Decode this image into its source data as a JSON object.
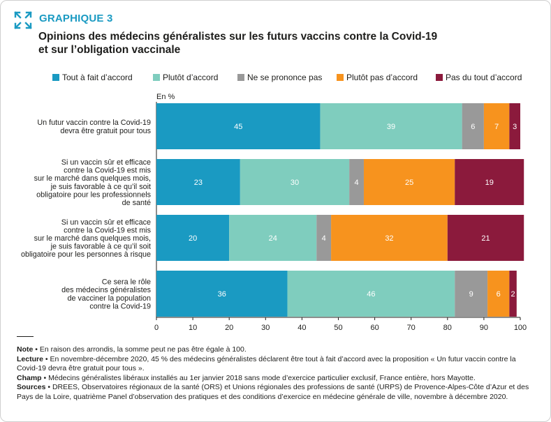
{
  "figure": {
    "label": "GRAPHIQUE 3",
    "title_lines": [
      "Opinions des médecins généralistes sur les futurs vaccins contre la Covid-19",
      "et sur l’obligation vaccinale"
    ]
  },
  "legend": [
    {
      "label": "Tout à fait d’accord",
      "color": "#1a9ac2"
    },
    {
      "label": "Plutôt d’accord",
      "color": "#7fcdbe"
    },
    {
      "label": "Ne se prononce pas",
      "color": "#999999"
    },
    {
      "label": "Plutôt pas d’accord",
      "color": "#f7931e"
    },
    {
      "label": "Pas du tout d’accord",
      "color": "#8b1a3c"
    }
  ],
  "chart_data": {
    "type": "bar",
    "orientation": "horizontal",
    "stacked": true,
    "unit_label": "En %",
    "xlim": [
      0,
      100
    ],
    "x_ticks": [
      "0",
      "10",
      "20",
      "30",
      "40",
      "50",
      "60",
      "70",
      "80",
      "90",
      "100"
    ],
    "categories": [
      [
        "Un futur vaccin contre la Covid-19",
        "devra être gratuit pour tous"
      ],
      [
        "Si un vaccin sûr et efficace",
        "contre la Covid-19 est mis",
        "sur le marché dans quelques mois,",
        "je suis favorable à ce qu’il soit",
        "obligatoire pour les professionnels",
        "de santé"
      ],
      [
        "Si un vaccin sûr et efficace",
        "contre la Covid-19 est mis",
        "sur le marché dans quelques mois,",
        "je suis favorable à ce qu’il soit",
        "obligatoire pour les personnes à risque"
      ],
      [
        "Ce sera le rôle",
        "des médecins généralistes",
        "de vacciner la population",
        "contre la Covid-19"
      ]
    ],
    "series": [
      {
        "name": "Tout à fait d’accord",
        "values": [
          45,
          23,
          20,
          36
        ]
      },
      {
        "name": "Plutôt d’accord",
        "values": [
          39,
          30,
          24,
          46
        ]
      },
      {
        "name": "Ne se prononce pas",
        "values": [
          6,
          4,
          4,
          9
        ]
      },
      {
        "name": "Plutôt pas d’accord",
        "values": [
          7,
          25,
          32,
          6
        ]
      },
      {
        "name": "Pas du tout d’accord",
        "values": [
          3,
          19,
          21,
          2
        ]
      }
    ],
    "bar_totals_drawn": [
      [
        45,
        39,
        6,
        7,
        3
      ],
      [
        23,
        30,
        4,
        25,
        19
      ],
      [
        20,
        24,
        4,
        32,
        21
      ],
      [
        36,
        46,
        9,
        6,
        2
      ]
    ]
  },
  "notes": [
    {
      "key": "Note",
      "text": " • En raison des arrondis, la somme peut ne pas être égale à 100."
    },
    {
      "key": "Lecture",
      "text": " • En novembre-décembre 2020, 45 % des médecins généralistes déclarent être tout à fait d’accord avec la proposition « Un futur vaccin contre la Covid-19 devra être gratuit pour tous »."
    },
    {
      "key": "Champ",
      "text": " • Médecins généralistes libéraux installés au 1er janvier 2018 sans mode d’exercice particulier exclusif, France entière, hors Mayotte."
    },
    {
      "key": "Sources",
      "text": " • DREES, Observatoires régionaux de la santé (ORS) et Unions régionales des professions de santé (URPS) de Provence-Alpes-Côte d’Azur et des Pays de la Loire, quatrième Panel d’observation des pratiques et des conditions d’exercice en médecine générale de ville, novembre à décembre 2020."
    }
  ]
}
